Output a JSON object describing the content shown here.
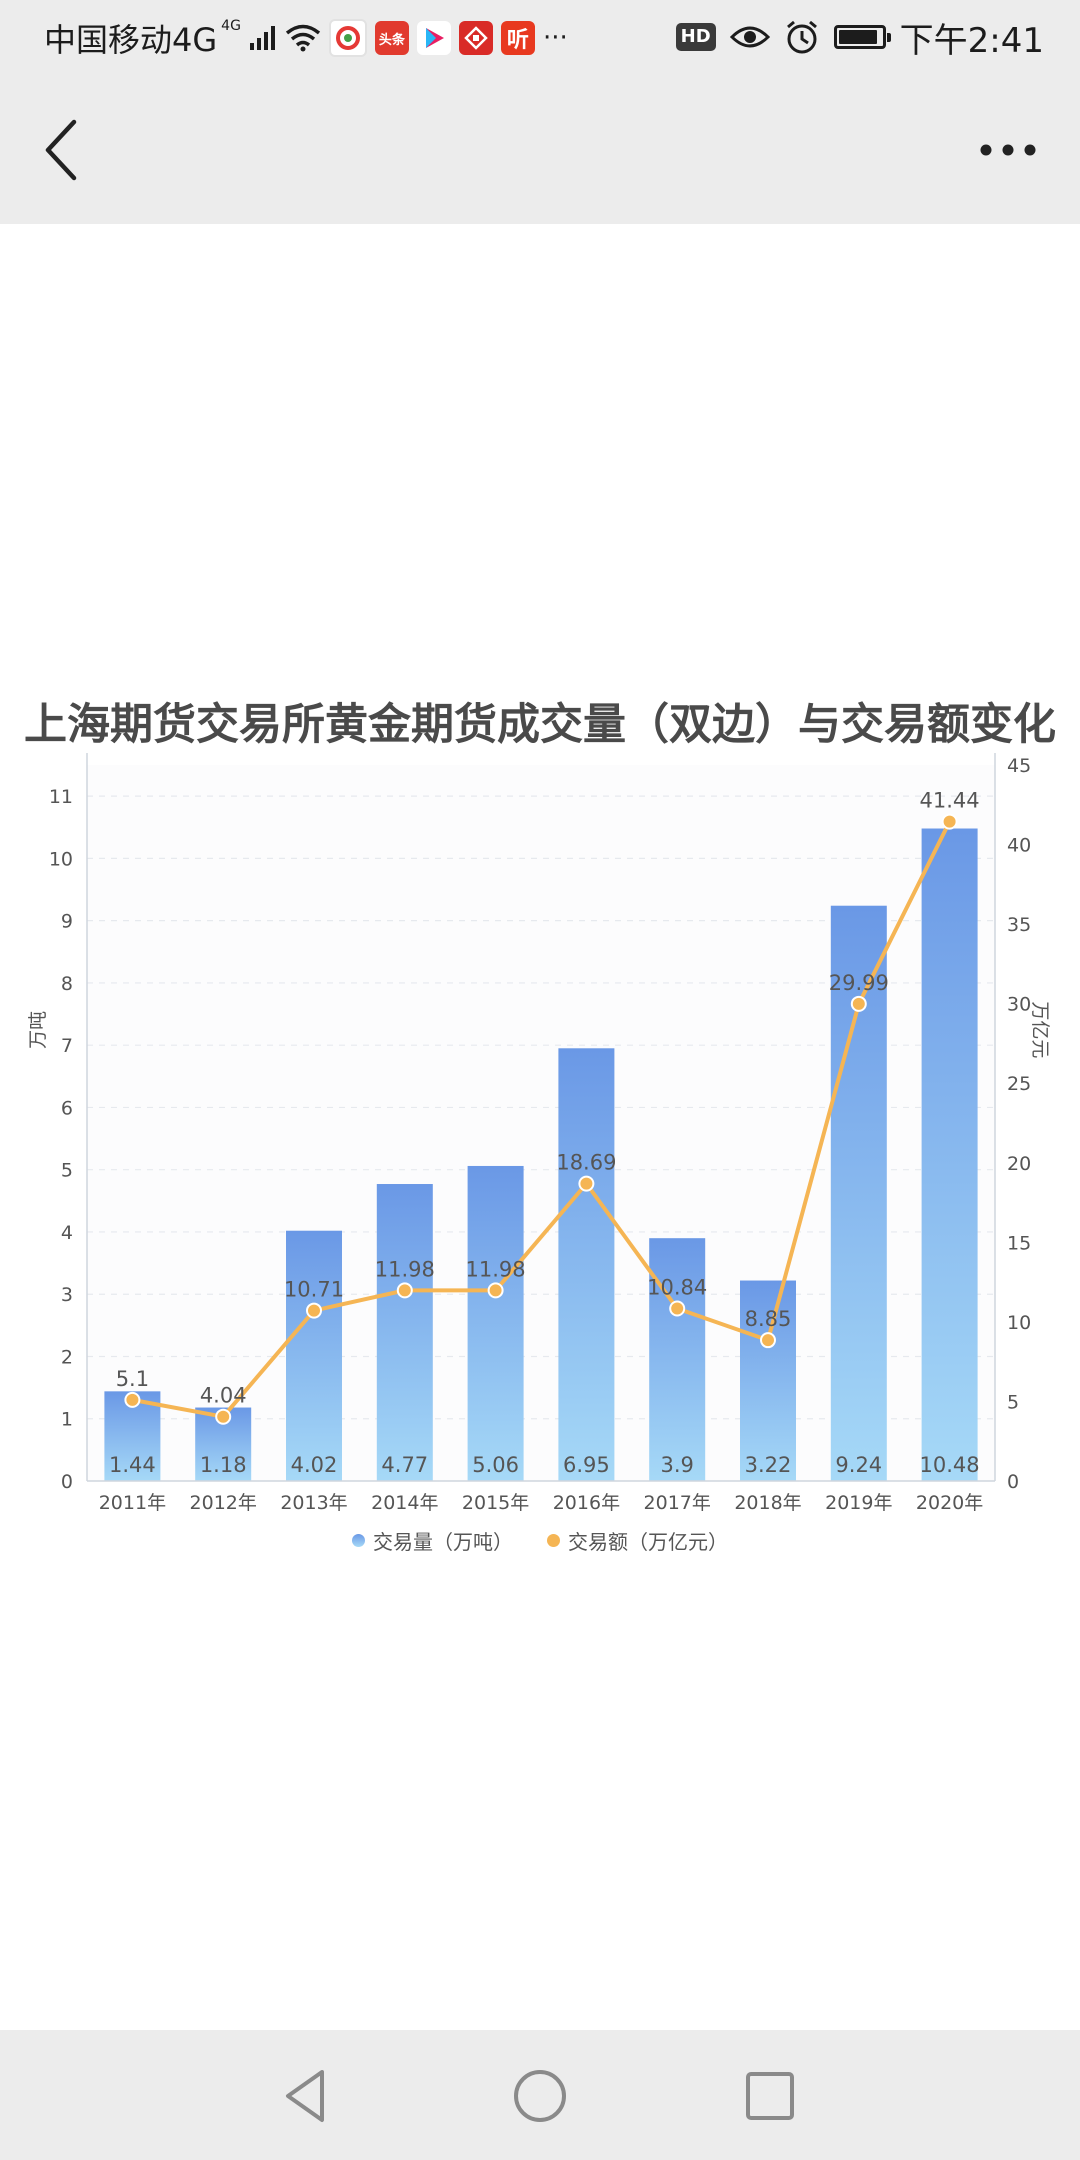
{
  "status_bar": {
    "carrier": "中国移动4G",
    "network_sup": "4G",
    "app_icons": [
      {
        "name": "qq-browser-icon",
        "color": "#d9352c",
        "text": ""
      },
      {
        "name": "toutiao-icon",
        "color": "#e13a2e",
        "text": "头条"
      },
      {
        "name": "youku-icon",
        "color": "#ffffff",
        "text": ""
      },
      {
        "name": "news-app-icon",
        "color": "#d92b27",
        "text": ""
      },
      {
        "name": "listen-app-icon",
        "color": "#e8391f",
        "text": "听"
      }
    ],
    "more_dots": "···",
    "hd": "HD",
    "time": "下午2:41"
  },
  "chart_data": {
    "type": "bar",
    "title": "上海期货交易所黄金期货成交量（双边）与交易额变化",
    "categories": [
      "2011年",
      "2012年",
      "2013年",
      "2014年",
      "2015年",
      "2016年",
      "2017年",
      "2018年",
      "2019年",
      "2020年"
    ],
    "series": [
      {
        "name": "交易量（万吨）",
        "type": "bar",
        "axis": "left",
        "color": "#6f9be6",
        "values": [
          1.44,
          1.18,
          4.02,
          4.77,
          5.06,
          6.95,
          3.9,
          3.22,
          9.24,
          10.48
        ]
      },
      {
        "name": "交易额（万亿元）",
        "type": "line",
        "axis": "right",
        "color": "#f5b554",
        "values": [
          5.1,
          4.04,
          10.71,
          11.98,
          11.98,
          18.69,
          10.84,
          8.85,
          29.99,
          41.44
        ]
      }
    ],
    "ylabel": "万吨",
    "ylabel_right": "万亿元",
    "ylim": [
      0,
      11.5
    ],
    "ylim_right": [
      0,
      45
    ],
    "yticks": [
      0,
      1,
      2,
      3,
      4,
      5,
      6,
      7,
      8,
      9,
      10,
      11
    ],
    "yticks_right": [
      0,
      5,
      10,
      15,
      20,
      25,
      30,
      35,
      40,
      45
    ],
    "grid": true,
    "legend": "bottom-center"
  }
}
